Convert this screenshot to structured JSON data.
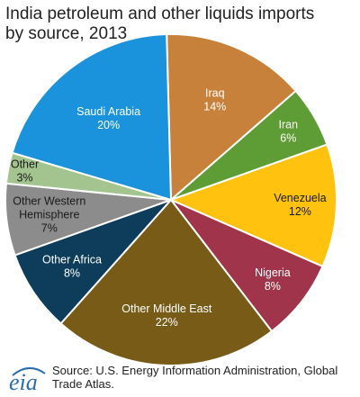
{
  "chart_data": {
    "type": "pie",
    "title_lines": [
      "India petroleum and other liquids imports",
      " by source, 2013"
    ],
    "slices": [
      {
        "label": "Iraq",
        "value": 14,
        "value_label": "14%",
        "color": "#c8813a",
        "text_color": "#ffffff"
      },
      {
        "label": "Iran",
        "value": 6,
        "value_label": "6%",
        "color": "#5e9c35",
        "text_color": "#ffffff"
      },
      {
        "label": "Venezuela",
        "value": 12,
        "value_label": "12%",
        "color": "#ffc20e",
        "text_color": "#1a1a1a"
      },
      {
        "label": "Nigeria",
        "value": 8,
        "value_label": "8%",
        "color": "#a0344a",
        "text_color": "#ffffff"
      },
      {
        "label": "Other Middle East",
        "value": 22,
        "value_label": "22%",
        "color": "#775b17",
        "text_color": "#ffffff"
      },
      {
        "label": "Other Africa",
        "value": 8,
        "value_label": "8%",
        "color": "#0e3d5c",
        "text_color": "#ffffff"
      },
      {
        "label": "Other Western Hemisphere",
        "value": 7,
        "value_label": "7%",
        "color": "#8c8c8c",
        "text_color": "#1a1a1a"
      },
      {
        "label": "Other",
        "value": 3,
        "value_label": "3%",
        "color": "#a3c48f",
        "text_color": "#1a1a1a"
      },
      {
        "label": "Saudi Arabia",
        "value": 20,
        "value_label": "20%",
        "color": "#1a93dc",
        "text_color": "#ffffff"
      }
    ],
    "legend": "none"
  },
  "footer": {
    "logo_text": "eia",
    "source_text": "Source: U.S. Energy Information  Administration, Global Trade Atlas."
  }
}
